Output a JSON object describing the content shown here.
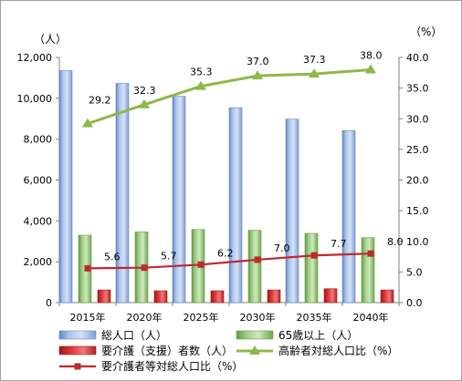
{
  "chart_data": {
    "type": "bar",
    "categories": [
      "2015年",
      "2020年",
      "2025年",
      "2030年",
      "2035年",
      "2040年"
    ],
    "y_left": {
      "unit": "（人）",
      "ylim": [
        0,
        12000
      ],
      "ticks": [
        "0",
        "2,000",
        "4,000",
        "6,000",
        "8,000",
        "10,000",
        "12,000"
      ]
    },
    "y_right": {
      "unit": "（%）",
      "ylim": [
        0,
        40
      ],
      "ticks": [
        "0.0",
        "5.0",
        "10.0",
        "15.0",
        "20.0",
        "25.0",
        "30.0",
        "35.0",
        "40.0"
      ]
    },
    "series": [
      {
        "name": "総人口（人）",
        "type": "bar",
        "axis": "left",
        "color": "#a8c0e8",
        "values": [
          11350,
          10730,
          10100,
          9540,
          8980,
          8420
        ]
      },
      {
        "name": "65歳以上（人）",
        "type": "bar",
        "axis": "left",
        "color": "#9dcd84",
        "values": [
          3300,
          3460,
          3580,
          3540,
          3390,
          3180
        ]
      },
      {
        "name": "要介護（支援）者数（人）",
        "type": "bar",
        "axis": "left",
        "color": "#e03030",
        "values": [
          620,
          580,
          580,
          620,
          680,
          620
        ]
      },
      {
        "name": "高齢者対総人口比（%）",
        "type": "line",
        "axis": "right",
        "color": "#8db84a",
        "marker": "triangle",
        "values": [
          29.2,
          32.3,
          35.3,
          37.0,
          37.3,
          38.0
        ],
        "labels": [
          "29.2",
          "32.3",
          "35.3",
          "37.0",
          "37.3",
          "38.0"
        ]
      },
      {
        "name": "要介護者等対総人口比（%）",
        "type": "line",
        "axis": "right",
        "color": "#c0282f",
        "marker": "square",
        "values": [
          5.6,
          5.7,
          6.2,
          7.0,
          7.7,
          8.0
        ],
        "labels": [
          "5.6",
          "5.7",
          "6.2",
          "7.0",
          "7.7",
          "8.0"
        ]
      }
    ],
    "legend": {
      "position": "bottom"
    },
    "grid": false
  }
}
